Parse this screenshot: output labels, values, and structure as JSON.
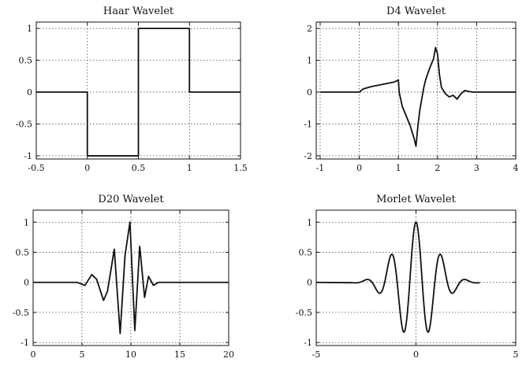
{
  "chart_data": [
    {
      "type": "line",
      "title": "Haar Wavelet",
      "xlim": [
        -0.5,
        1.5
      ],
      "ylim": [
        -1.05,
        1.1
      ],
      "grid": true,
      "xticks": [
        -0.5,
        0,
        0.5,
        1,
        1.5
      ],
      "xtick_labels": [
        "-0.5",
        "0",
        "0.5",
        "1",
        "1.5"
      ],
      "yticks": [
        1,
        0.5,
        0,
        -0.5,
        -1
      ],
      "ytick_labels": [
        "1",
        "0.5",
        "0",
        "-0.5",
        "-1"
      ],
      "series": [
        {
          "x": [
            -0.5,
            0,
            0,
            0.5,
            0.5,
            1,
            1,
            1.5
          ],
          "y": [
            0,
            0,
            -1,
            -1,
            1,
            1,
            0,
            0
          ]
        }
      ]
    },
    {
      "type": "line",
      "title": "D4 Wavelet",
      "xlim": [
        -1.1,
        4
      ],
      "ylim": [
        -2.1,
        2.2
      ],
      "grid": true,
      "xticks": [
        -1,
        0,
        1,
        2,
        3,
        4
      ],
      "xtick_labels": [
        "-1",
        "0",
        "1",
        "2",
        "3",
        "4"
      ],
      "yticks": [
        2,
        1,
        0,
        -1,
        -2
      ],
      "ytick_labels": [
        "2",
        "1",
        "0",
        "-1",
        "-2"
      ],
      "series": [
        {
          "x": [
            -1,
            0,
            0.1,
            0.3,
            0.5,
            0.7,
            0.9,
            1,
            1.02,
            1.1,
            1.2,
            1.3,
            1.4,
            1.45,
            1.5,
            1.55,
            1.6,
            1.65,
            1.7,
            1.8,
            1.9,
            1.95,
            2.0,
            2.05,
            2.1,
            2.2,
            2.3,
            2.4,
            2.5,
            2.6,
            2.7,
            2.8,
            2.9,
            3.0,
            4
          ],
          "y": [
            0,
            0,
            0.1,
            0.17,
            0.22,
            0.27,
            0.32,
            0.38,
            0.0,
            -0.45,
            -0.75,
            -1.05,
            -1.45,
            -1.7,
            -1.05,
            -0.55,
            -0.2,
            0.15,
            0.4,
            0.75,
            1.05,
            1.4,
            1.2,
            0.55,
            0.15,
            -0.05,
            -0.15,
            -0.1,
            -0.22,
            -0.05,
            0.05,
            0.02,
            0,
            0,
            0
          ]
        }
      ]
    },
    {
      "type": "line",
      "title": "D20 Wavelet",
      "xlim": [
        0,
        20
      ],
      "ylim": [
        -1.05,
        1.2
      ],
      "grid": true,
      "xticks": [
        0,
        5,
        10,
        15,
        20
      ],
      "xtick_labels": [
        "0",
        "5",
        "10",
        "15",
        "20"
      ],
      "yticks": [
        1,
        0.5,
        0,
        -0.5,
        -1
      ],
      "ytick_labels": [
        "1",
        "0.5",
        "0",
        "-0.5",
        "-1"
      ],
      "series": [
        {
          "x": [
            0,
            4.5,
            5.3,
            6,
            6.5,
            7.2,
            7.6,
            8.3,
            8.9,
            9.4,
            9.9,
            10.4,
            10.9,
            11.4,
            11.8,
            12.3,
            12.8,
            20
          ],
          "y": [
            0,
            0,
            -0.05,
            0.13,
            0.05,
            -0.3,
            -0.15,
            0.55,
            -0.85,
            0.45,
            1.0,
            -0.8,
            0.6,
            -0.25,
            0.1,
            -0.05,
            0,
            0
          ]
        }
      ]
    },
    {
      "type": "line",
      "title": "Morlet Wavelet",
      "xlim": [
        -5,
        5
      ],
      "ylim": [
        -1.05,
        1.2
      ],
      "grid": true,
      "xticks": [
        -5,
        0,
        5
      ],
      "xtick_labels": [
        "-5",
        "0",
        "5"
      ],
      "yticks": [
        1,
        0.5,
        0,
        -0.5,
        -1
      ],
      "ytick_labels": [
        "1",
        "0.5",
        "0",
        "-0.5",
        "-1"
      ],
      "series": [
        {
          "function": "morlet",
          "x_range": [
            -3.2,
            3.2
          ]
        }
      ]
    }
  ]
}
